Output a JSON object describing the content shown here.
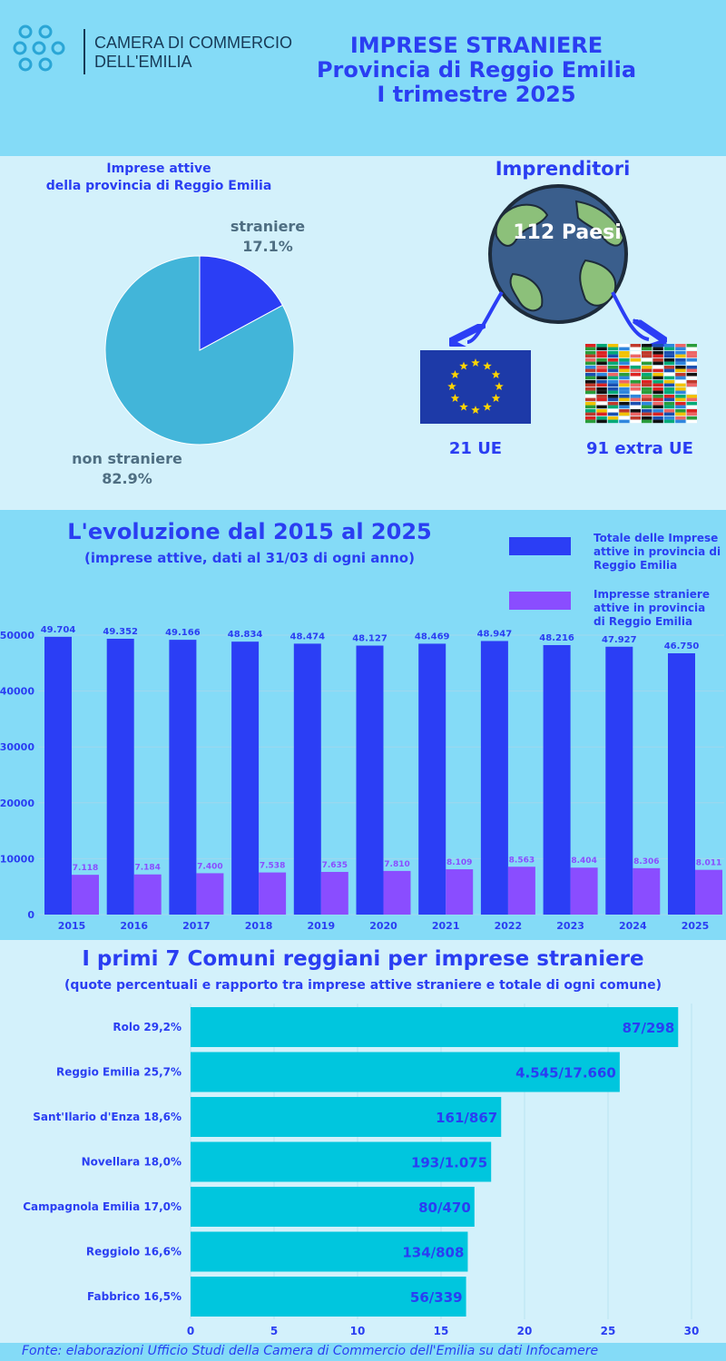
{
  "header": {
    "logo_line1": "CAMERA DI COMMERCIO",
    "logo_line2": "DELL'EMILIA",
    "title_line1": "IMPRESE STRANIERE",
    "title_line2": "Provincia di Reggio Emilia",
    "title_line3": "I trimestre 2025"
  },
  "pie": {
    "title_line1": "Imprese attive",
    "title_line2": "della provincia di Reggio Emilia",
    "label_a": "straniere",
    "value_a": "17.1%",
    "label_b": "non straniere",
    "value_b": "82.9%"
  },
  "entrepreneurs": {
    "title": "Imprenditori",
    "globe_label": "112 Paesi",
    "ue_label": "21 UE",
    "extra_label": "91 extra UE"
  },
  "evolution": {
    "title": "L'evoluzione dal 2015 al 2025",
    "subtitle": "(imprese attive, dati al 31/03 di ogni anno)",
    "legend_total": [
      "Totale delle Imprese",
      "attive in provincia di",
      "Reggio Emilia"
    ],
    "legend_foreign": [
      "Impresse straniere",
      "attive in provincia",
      "di Reggio Emilia"
    ]
  },
  "comuni": {
    "title": "I primi 7 Comuni reggiani per imprese straniere",
    "subtitle": "(quote percentuali e rapporto tra imprese attive straniere e totale di ogni comune)"
  },
  "footer": {
    "source": "Fonte: elaborazioni Ufficio Studi  della Camera di Commercio  dell'Emilia su dati Infocamere"
  },
  "colors": {
    "total": "#2b3ef5",
    "foreign": "#8a4dff",
    "pie_foreign": "#2b3ef5",
    "pie_other": "#42b5d9",
    "hbar": "#00c6de"
  },
  "chart_data": [
    {
      "type": "pie",
      "categories": [
        "straniere",
        "non straniere"
      ],
      "values": [
        17.1,
        82.9
      ]
    },
    {
      "type": "bar",
      "categories": [
        "2015",
        "2016",
        "2017",
        "2018",
        "2019",
        "2020",
        "2021",
        "2022",
        "2023",
        "2024",
        "2025"
      ],
      "series": [
        {
          "name": "Totale delle Imprese attive in provincia di Reggio Emilia",
          "values": [
            49704,
            49352,
            49166,
            48834,
            48474,
            48127,
            48469,
            48947,
            48216,
            47927,
            46750
          ],
          "labels": [
            "49.704",
            "49.352",
            "49.166",
            "48.834",
            "48.474",
            "48.127",
            "48.469",
            "48.947",
            "48.216",
            "47.927",
            "46.750"
          ]
        },
        {
          "name": "Impresse straniere attive in provincia di Reggio Emilia",
          "values": [
            7118,
            7184,
            7400,
            7538,
            7635,
            7810,
            8109,
            8563,
            8404,
            8306,
            8011
          ],
          "labels": [
            "7.118",
            "7.184",
            "7.400",
            "7.538",
            "7.635",
            "7.810",
            "8.109",
            "8.563",
            "8.404",
            "8.306",
            "8.011"
          ]
        }
      ],
      "ylim": [
        0,
        50000
      ],
      "yticks": [
        "0",
        "10000",
        "20000",
        "30000",
        "40000",
        "50000"
      ],
      "title": "L'evoluzione dal 2015 al 2025"
    },
    {
      "type": "bar",
      "orientation": "horizontal",
      "categories": [
        "Rolo 29,2%",
        "Reggio Emilia 25,7%",
        "Sant'Ilario d'Enza 18,6%",
        "Novellara 18,0%",
        "Campagnola Emilia 17,0%",
        "Reggiolo 16,6%",
        "Fabbrico 16,5%"
      ],
      "values": [
        29.2,
        25.7,
        18.6,
        18.0,
        17.0,
        16.6,
        16.5
      ],
      "labels": [
        "87/298",
        "4.545/17.660",
        "161/867",
        "193/1.075",
        "80/470",
        "134/808",
        "56/339"
      ],
      "xlim": [
        0,
        30
      ],
      "xticks": [
        "0",
        "5",
        "10",
        "15",
        "20",
        "25",
        "30"
      ],
      "title": "I primi 7 Comuni reggiani per imprese straniere"
    }
  ]
}
